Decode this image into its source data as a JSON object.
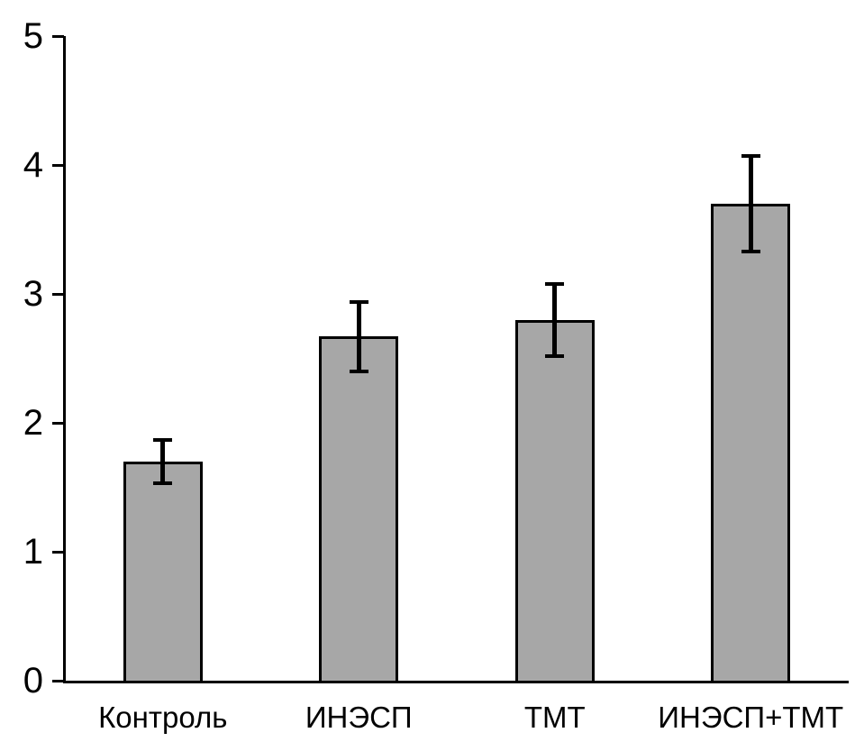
{
  "chart_data": {
    "type": "bar",
    "categories": [
      "Контроль",
      "ИНЭСП",
      "ТМТ",
      "ИНЭСП+ТМТ"
    ],
    "values": [
      1.7,
      2.67,
      2.8,
      3.7
    ],
    "errors": [
      0.17,
      0.27,
      0.28,
      0.37
    ],
    "title": "",
    "xlabel": "",
    "ylabel": "",
    "ylim": [
      0,
      5
    ],
    "yticks": [
      "0",
      "1",
      "2",
      "3",
      "4",
      "5"
    ],
    "grid": false,
    "legend_position": "none",
    "bar_color": "#a7a7a7",
    "bar_border_color": "#000000",
    "error_bar_color": "#000000",
    "axis_color": "#000000"
  }
}
